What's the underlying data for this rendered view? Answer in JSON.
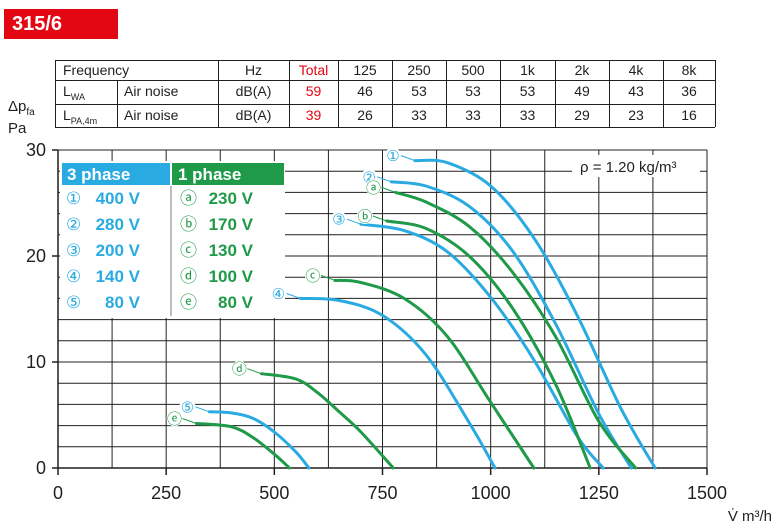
{
  "header": {
    "model": "315/6"
  },
  "noise_table": {
    "headers": [
      "Frequency",
      "Hz",
      "Total",
      "125",
      "250",
      "500",
      "1k",
      "2k",
      "4k",
      "8k"
    ],
    "rows": [
      {
        "sym": "L",
        "sub": "WA",
        "label": "Air noise",
        "unit": "dB(A)",
        "values": [
          "59",
          "46",
          "53",
          "53",
          "53",
          "49",
          "43",
          "36"
        ]
      },
      {
        "sym": "L",
        "sub": "PA,4m",
        "label": "Air noise",
        "unit": "dB(A)",
        "values": [
          "39",
          "26",
          "33",
          "33",
          "33",
          "29",
          "23",
          "16"
        ]
      }
    ]
  },
  "colors": {
    "accent_red": "#e30613",
    "three_phase": "#29abe2",
    "one_phase": "#1e9a48",
    "axis": "#231f20"
  },
  "chart_data": {
    "type": "line",
    "ylabel_sym": "Δp",
    "ylabel_sub": "fa",
    "ylabel_unit": "Pa",
    "xlabel": "V̇ m³/h",
    "xlim": [
      0,
      1500
    ],
    "ylim": [
      0,
      30
    ],
    "xticks": [
      0,
      250,
      500,
      750,
      1000,
      1250,
      1500
    ],
    "yticks": [
      0,
      10,
      20,
      30
    ],
    "grid": true,
    "density_note": "ρ = 1.20 kg/m³",
    "legend": {
      "three_phase_title": "3 phase",
      "one_phase_title": "1 phase",
      "three_phase": [
        {
          "mark": "①",
          "text": "400 V"
        },
        {
          "mark": "②",
          "text": "280 V"
        },
        {
          "mark": "③",
          "text": "200 V"
        },
        {
          "mark": "④",
          "text": "140 V"
        },
        {
          "mark": "⑤",
          "text": "80 V"
        }
      ],
      "one_phase": [
        {
          "mark": "ⓐ",
          "text": "230 V"
        },
        {
          "mark": "ⓑ",
          "text": "170 V"
        },
        {
          "mark": "ⓒ",
          "text": "130 V"
        },
        {
          "mark": "ⓓ",
          "text": "100 V"
        },
        {
          "mark": "ⓔ",
          "text": "80 V"
        }
      ]
    },
    "series": [
      {
        "name": "400 V",
        "phase": "3",
        "mark": "①",
        "x": [
          825,
          900,
          1000,
          1100,
          1200,
          1300,
          1380
        ],
        "y": [
          29.0,
          28.8,
          26.6,
          21.7,
          14.4,
          5.7,
          0
        ]
      },
      {
        "name": "280 V",
        "phase": "3",
        "mark": "②",
        "x": [
          770,
          850,
          950,
          1050,
          1150,
          1250,
          1325
        ],
        "y": [
          27.0,
          26.6,
          24.7,
          20.5,
          13.6,
          5.1,
          0
        ]
      },
      {
        "name": "200 V",
        "phase": "3",
        "mark": "③",
        "x": [
          700,
          800,
          900,
          1000,
          1100,
          1200,
          1260
        ],
        "y": [
          23.0,
          22.4,
          20.4,
          16.1,
          10.2,
          3.0,
          0
        ]
      },
      {
        "name": "140 V",
        "phase": "3",
        "mark": "④",
        "x": [
          560,
          650,
          750,
          850,
          950,
          1010
        ],
        "y": [
          16.0,
          15.8,
          14.4,
          10.7,
          4.3,
          0
        ]
      },
      {
        "name": "80 V",
        "phase": "3",
        "mark": "⑤",
        "x": [
          350,
          400,
          450,
          500,
          550,
          580
        ],
        "y": [
          5.3,
          5.2,
          4.7,
          3.4,
          1.5,
          0
        ]
      },
      {
        "name": "230 V",
        "phase": "1",
        "mark": "ⓐ",
        "x": [
          780,
          850,
          950,
          1050,
          1150,
          1250,
          1335
        ],
        "y": [
          26.0,
          25.1,
          22.8,
          18.5,
          12.4,
          4.4,
          0
        ]
      },
      {
        "name": "170 V",
        "phase": "1",
        "mark": "ⓑ",
        "x": [
          760,
          850,
          950,
          1050,
          1150,
          1230
        ],
        "y": [
          23.3,
          22.6,
          20.0,
          15.1,
          7.9,
          0
        ]
      },
      {
        "name": "130 V",
        "phase": "1",
        "mark": "ⓒ",
        "x": [
          640,
          700,
          800,
          900,
          1000,
          1100
        ],
        "y": [
          17.7,
          17.5,
          16.0,
          12.4,
          6.2,
          0
        ]
      },
      {
        "name": "100 V",
        "phase": "1",
        "mark": "ⓓ",
        "x": [
          470,
          550,
          600,
          650,
          700,
          775
        ],
        "y": [
          8.9,
          8.4,
          7.1,
          5.3,
          3.4,
          0
        ]
      },
      {
        "name": "80 V",
        "phase": "1",
        "mark": "ⓔ",
        "x": [
          320,
          400,
          450,
          500,
          535
        ],
        "y": [
          4.2,
          3.9,
          2.9,
          1.3,
          0
        ]
      }
    ]
  }
}
